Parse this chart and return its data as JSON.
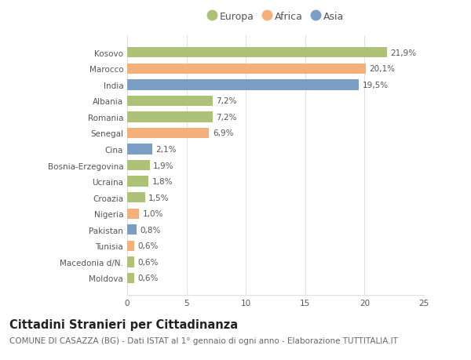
{
  "categories": [
    "Kosovo",
    "Marocco",
    "India",
    "Albania",
    "Romania",
    "Senegal",
    "Cina",
    "Bosnia-Erzegovina",
    "Ucraina",
    "Croazia",
    "Nigeria",
    "Pakistan",
    "Tunisia",
    "Macedonia d/N.",
    "Moldova"
  ],
  "values": [
    21.9,
    20.1,
    19.5,
    7.2,
    7.2,
    6.9,
    2.1,
    1.9,
    1.8,
    1.5,
    1.0,
    0.8,
    0.6,
    0.6,
    0.6
  ],
  "labels": [
    "21,9%",
    "20,1%",
    "19,5%",
    "7,2%",
    "7,2%",
    "6,9%",
    "2,1%",
    "1,9%",
    "1,8%",
    "1,5%",
    "1,0%",
    "0,8%",
    "0,6%",
    "0,6%",
    "0,6%"
  ],
  "colors": [
    "#adc178",
    "#f4b07a",
    "#7b9ec5",
    "#adc178",
    "#adc178",
    "#f4b07a",
    "#7b9ec5",
    "#adc178",
    "#adc178",
    "#adc178",
    "#f4b07a",
    "#7b9ec5",
    "#f4b07a",
    "#adc178",
    "#adc178"
  ],
  "legend_labels": [
    "Europa",
    "Africa",
    "Asia"
  ],
  "legend_colors": [
    "#adc178",
    "#f4b07a",
    "#7b9ec5"
  ],
  "title": "Cittadini Stranieri per Cittadinanza",
  "subtitle": "COMUNE DI CASAZZA (BG) - Dati ISTAT al 1° gennaio di ogni anno - Elaborazione TUTTITALIA.IT",
  "xlim": [
    0,
    25
  ],
  "xticks": [
    0,
    5,
    10,
    15,
    20,
    25
  ],
  "bg_color": "#ffffff",
  "grid_color": "#e0e0e0",
  "bar_height": 0.65,
  "title_fontsize": 10.5,
  "subtitle_fontsize": 7.5,
  "label_fontsize": 7.5,
  "tick_fontsize": 7.5,
  "legend_fontsize": 9
}
